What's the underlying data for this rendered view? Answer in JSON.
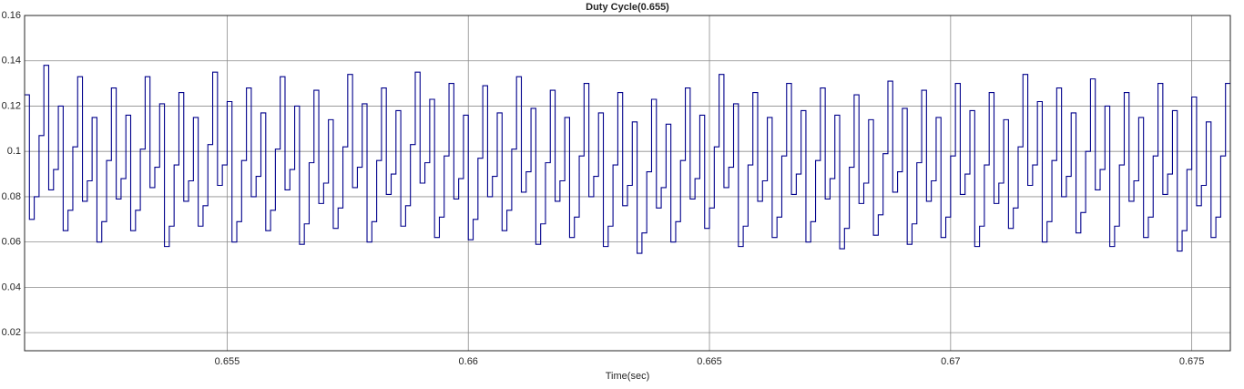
{
  "chart_data": {
    "type": "step",
    "title": "Duty Cycle(0.655)",
    "x_label": "Time(sec)",
    "xlim": [
      0.6508,
      0.6758
    ],
    "xticks": [
      0.655,
      0.66,
      0.665,
      0.67,
      0.675
    ],
    "ylim": [
      0.012,
      0.16
    ],
    "yticks": [
      0.02,
      0.04,
      0.06,
      0.08,
      0.1,
      0.12,
      0.14,
      0.16
    ],
    "grid": true,
    "color": "#00008b",
    "x": [
      0.6508,
      0.6509,
      0.651,
      0.6511,
      0.6512,
      0.6513,
      0.6514,
      0.6515,
      0.6516,
      0.6517,
      0.6518,
      0.6519,
      0.652,
      0.6521,
      0.6522,
      0.6523,
      0.6524,
      0.6525,
      0.6526,
      0.6527,
      0.6528,
      0.6529,
      0.653,
      0.6531,
      0.6532,
      0.6533,
      0.6534,
      0.6535,
      0.6536,
      0.6537,
      0.6538,
      0.6539,
      0.654,
      0.6541,
      0.6542,
      0.6543,
      0.6544,
      0.6545,
      0.6546,
      0.6547,
      0.6548,
      0.6549,
      0.655,
      0.6551,
      0.6552,
      0.6553,
      0.6554,
      0.6555,
      0.6556,
      0.6557,
      0.6558,
      0.6559,
      0.656,
      0.6561,
      0.6562,
      0.6563,
      0.6564,
      0.6565,
      0.6566,
      0.6567,
      0.6568,
      0.6569,
      0.657,
      0.6571,
      0.6572,
      0.6573,
      0.6574,
      0.6575,
      0.6576,
      0.6577,
      0.6578,
      0.6579,
      0.658,
      0.6581,
      0.6582,
      0.6583,
      0.6584,
      0.6585,
      0.6586,
      0.6587,
      0.6588,
      0.6589,
      0.659,
      0.6591,
      0.6592,
      0.6593,
      0.6594,
      0.6595,
      0.6596,
      0.6597,
      0.6598,
      0.6599,
      0.66,
      0.6601,
      0.6602,
      0.6603,
      0.6604,
      0.6605,
      0.6606,
      0.6607,
      0.6608,
      0.6609,
      0.661,
      0.6611,
      0.6612,
      0.6613,
      0.6614,
      0.6615,
      0.6616,
      0.6617,
      0.6618,
      0.6619,
      0.662,
      0.6621,
      0.6622,
      0.6623,
      0.6624,
      0.6625,
      0.6626,
      0.6627,
      0.6628,
      0.6629,
      0.663,
      0.6631,
      0.6632,
      0.6633,
      0.6634,
      0.6635,
      0.6636,
      0.6637,
      0.6638,
      0.6639,
      0.664,
      0.6641,
      0.6642,
      0.6643,
      0.6644,
      0.6645,
      0.6646,
      0.6647,
      0.6648,
      0.6649,
      0.665,
      0.6651,
      0.6652,
      0.6653,
      0.6654,
      0.6655,
      0.6656,
      0.6657,
      0.6658,
      0.6659,
      0.666,
      0.6661,
      0.6662,
      0.6663,
      0.6664,
      0.6665,
      0.6666,
      0.6667,
      0.6668,
      0.6669,
      0.667,
      0.6671,
      0.6672,
      0.6673,
      0.6674,
      0.6675,
      0.6676,
      0.6677,
      0.6678,
      0.6679,
      0.668,
      0.6681,
      0.6682,
      0.6683,
      0.6684,
      0.6685,
      0.6686,
      0.6687,
      0.6688,
      0.6689,
      0.669,
      0.6691,
      0.6692,
      0.6693,
      0.6694,
      0.6695,
      0.6696,
      0.6697,
      0.6698,
      0.6699,
      0.67,
      0.6701,
      0.6702,
      0.6703,
      0.6704,
      0.6705,
      0.6706,
      0.6707,
      0.6708,
      0.6709,
      0.671,
      0.6711,
      0.6712,
      0.6713,
      0.6714,
      0.6715,
      0.6716,
      0.6717,
      0.6718,
      0.6719,
      0.672,
      0.6721,
      0.6722,
      0.6723,
      0.6724,
      0.6725,
      0.6726,
      0.6727,
      0.6728,
      0.6729,
      0.673,
      0.6731,
      0.6732,
      0.6733,
      0.6734,
      0.6735,
      0.6736,
      0.6737,
      0.6738,
      0.6739,
      0.674,
      0.6741,
      0.6742,
      0.6743,
      0.6744,
      0.6745,
      0.6746,
      0.6747,
      0.6748,
      0.6749,
      0.675,
      0.6751,
      0.6752,
      0.6753,
      0.6754,
      0.6755,
      0.6756,
      0.6757
    ],
    "values": [
      0.125,
      0.07,
      0.08,
      0.107,
      0.138,
      0.083,
      0.092,
      0.12,
      0.065,
      0.074,
      0.102,
      0.133,
      0.078,
      0.087,
      0.115,
      0.06,
      0.069,
      0.096,
      0.128,
      0.079,
      0.088,
      0.116,
      0.065,
      0.074,
      0.101,
      0.133,
      0.084,
      0.093,
      0.121,
      0.058,
      0.067,
      0.094,
      0.126,
      0.078,
      0.087,
      0.115,
      0.067,
      0.076,
      0.103,
      0.135,
      0.085,
      0.094,
      0.122,
      0.06,
      0.069,
      0.096,
      0.128,
      0.08,
      0.089,
      0.117,
      0.065,
      0.074,
      0.101,
      0.133,
      0.083,
      0.092,
      0.12,
      0.059,
      0.068,
      0.095,
      0.127,
      0.077,
      0.086,
      0.114,
      0.066,
      0.075,
      0.102,
      0.134,
      0.084,
      0.093,
      0.121,
      0.06,
      0.069,
      0.096,
      0.128,
      0.081,
      0.09,
      0.118,
      0.067,
      0.076,
      0.103,
      0.135,
      0.086,
      0.095,
      0.123,
      0.062,
      0.071,
      0.098,
      0.13,
      0.079,
      0.088,
      0.116,
      0.061,
      0.07,
      0.097,
      0.129,
      0.08,
      0.089,
      0.117,
      0.065,
      0.074,
      0.101,
      0.133,
      0.082,
      0.091,
      0.119,
      0.059,
      0.068,
      0.095,
      0.127,
      0.078,
      0.087,
      0.115,
      0.062,
      0.071,
      0.098,
      0.13,
      0.08,
      0.089,
      0.117,
      0.058,
      0.067,
      0.094,
      0.126,
      0.076,
      0.085,
      0.113,
      0.055,
      0.064,
      0.091,
      0.123,
      0.075,
      0.084,
      0.112,
      0.06,
      0.069,
      0.096,
      0.128,
      0.079,
      0.088,
      0.116,
      0.066,
      0.075,
      0.102,
      0.134,
      0.084,
      0.093,
      0.121,
      0.058,
      0.067,
      0.094,
      0.126,
      0.078,
      0.087,
      0.115,
      0.062,
      0.071,
      0.098,
      0.13,
      0.081,
      0.09,
      0.118,
      0.06,
      0.069,
      0.096,
      0.128,
      0.079,
      0.088,
      0.116,
      0.057,
      0.066,
      0.093,
      0.125,
      0.077,
      0.086,
      0.114,
      0.063,
      0.072,
      0.099,
      0.131,
      0.082,
      0.091,
      0.119,
      0.059,
      0.068,
      0.095,
      0.127,
      0.078,
      0.087,
      0.115,
      0.062,
      0.071,
      0.098,
      0.13,
      0.081,
      0.09,
      0.118,
      0.058,
      0.067,
      0.094,
      0.126,
      0.077,
      0.086,
      0.114,
      0.066,
      0.075,
      0.102,
      0.134,
      0.085,
      0.094,
      0.122,
      0.06,
      0.069,
      0.096,
      0.128,
      0.08,
      0.089,
      0.117,
      0.064,
      0.073,
      0.1,
      0.132,
      0.083,
      0.092,
      0.12,
      0.058,
      0.067,
      0.094,
      0.126,
      0.078,
      0.087,
      0.115,
      0.062,
      0.071,
      0.098,
      0.13,
      0.081,
      0.09,
      0.118,
      0.056,
      0.065,
      0.092,
      0.124,
      0.076,
      0.085,
      0.113,
      0.062,
      0.071,
      0.098,
      0.13
    ]
  }
}
